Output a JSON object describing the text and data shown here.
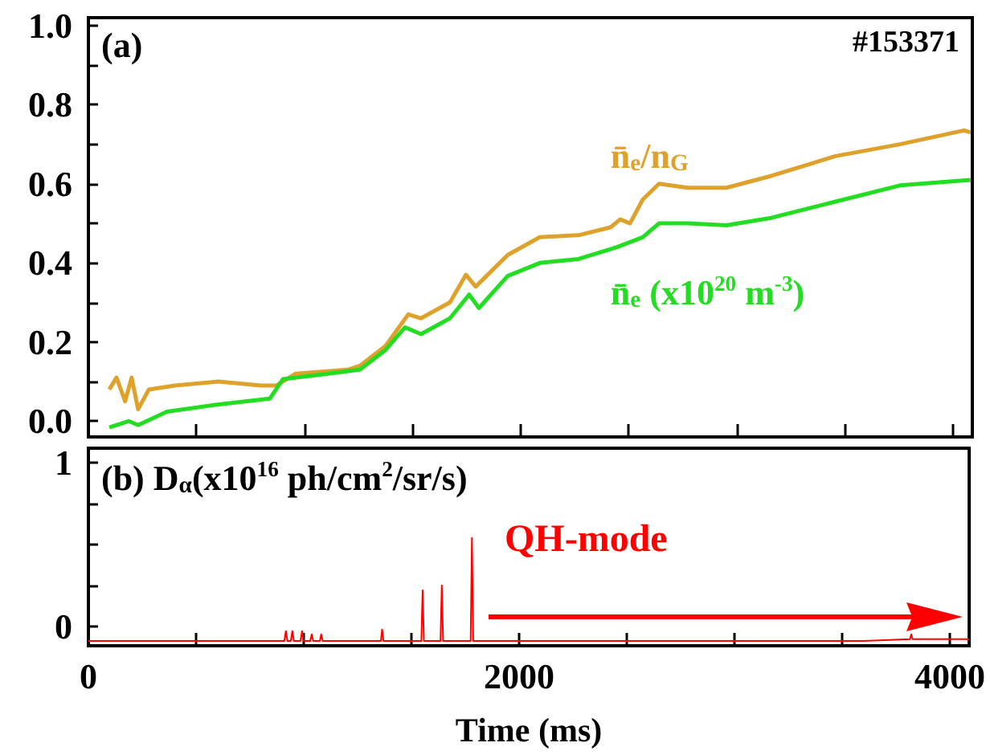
{
  "chart_data": [
    {
      "type": "line",
      "annotations": [
        "(a)",
        "#153371"
      ],
      "marker": "none",
      "grid": false,
      "legend": false,
      "tick_labels": "y",
      "xlim": [
        0,
        4090
      ],
      "ylim": [
        -0.04,
        1.02
      ],
      "xticks": [
        {
          "value": 0,
          "label": null
        },
        {
          "value": 500,
          "label": null
        },
        {
          "value": 1000,
          "label": null
        },
        {
          "value": 1500,
          "label": null
        },
        {
          "value": 2000,
          "label": null
        },
        {
          "value": 2500,
          "label": null
        },
        {
          "value": 3000,
          "label": null
        },
        {
          "value": 3500,
          "label": null
        },
        {
          "value": 4000,
          "label": null
        }
      ],
      "yticks": [
        {
          "value": 0,
          "label": "0.0"
        },
        {
          "value": 0.1,
          "label": null
        },
        {
          "value": 0.2,
          "label": "0.2"
        },
        {
          "value": 0.3,
          "label": null
        },
        {
          "value": 0.4,
          "label": "0.4"
        },
        {
          "value": 0.5,
          "label": null
        },
        {
          "value": 0.6,
          "label": "0.6"
        },
        {
          "value": 0.7,
          "label": null
        },
        {
          "value": 0.8,
          "label": "0.8"
        },
        {
          "value": 0.9,
          "label": null
        },
        {
          "value": 1.0,
          "label": "1.0"
        }
      ],
      "series": [
        {
          "name": "n̄$_{e}$/n$_{G}$",
          "color": "#dda12c",
          "x": [
            97,
            130,
            170,
            200,
            230,
            280,
            400,
            600,
            800,
            870,
            960,
            1200,
            1256,
            1375,
            1480,
            1539,
            1673,
            1747,
            1792,
            1940,
            2089,
            2268,
            2416,
            2461,
            2506,
            2565,
            2640,
            2773,
            2952,
            3160,
            3457,
            3755,
            4052,
            4082
          ],
          "values": [
            0.08,
            0.11,
            0.05,
            0.11,
            0.03,
            0.08,
            0.09,
            0.1,
            0.09,
            0.09,
            0.12,
            0.13,
            0.14,
            0.19,
            0.27,
            0.26,
            0.3,
            0.37,
            0.34,
            0.42,
            0.465,
            0.47,
            0.49,
            0.51,
            0.5,
            0.56,
            0.6,
            0.59,
            0.59,
            0.62,
            0.67,
            0.7,
            0.735,
            0.73
          ]
        },
        {
          "name": "n̄$_{e}$ (x10$^{20}$ m$^{-3}$)",
          "color": "#22dd22",
          "x": [
            97,
            186,
            230,
            364,
            573,
            840,
            900,
            1019,
            1256,
            1375,
            1465,
            1539,
            1673,
            1762,
            1807,
            1940,
            2089,
            2268,
            2446,
            2565,
            2640,
            2773,
            2952,
            3160,
            3457,
            3755,
            4082
          ],
          "values": [
            -0.016,
            0.0,
            -0.01,
            0.024,
            0.04,
            0.057,
            0.106,
            0.114,
            0.13,
            0.18,
            0.237,
            0.22,
            0.26,
            0.32,
            0.286,
            0.367,
            0.4,
            0.41,
            0.44,
            0.465,
            0.5,
            0.5,
            0.495,
            0.514,
            0.555,
            0.596,
            0.61
          ]
        }
      ]
    },
    {
      "type": "line",
      "annotations": [
        "(b) D$_{α}$(x10$^{16}$ ph/cm$^{2}$/sr/s)",
        "QH-mode"
      ],
      "marker": "none",
      "grid": false,
      "legend": false,
      "xlabel": "Time (ms)",
      "xlim": [
        0,
        4090
      ],
      "ylim": [
        -0.12,
        1.09
      ],
      "xticks": [
        {
          "value": 0,
          "label": "0"
        },
        {
          "value": 500,
          "label": null
        },
        {
          "value": 1000,
          "label": null
        },
        {
          "value": 1500,
          "label": null
        },
        {
          "value": 2000,
          "label": "2000"
        },
        {
          "value": 2500,
          "label": null
        },
        {
          "value": 3000,
          "label": null
        },
        {
          "value": 3500,
          "label": null
        },
        {
          "value": 4000,
          "label": "4000"
        }
      ],
      "yticks": [
        {
          "value": 0,
          "label": "0"
        },
        {
          "value": 0.25,
          "label": null
        },
        {
          "value": 0.5,
          "label": null
        },
        {
          "value": 0.75,
          "label": null
        },
        {
          "value": 1,
          "label": "1"
        }
      ],
      "series": [
        {
          "color": "#ff0000",
          "x": [
            0,
            910,
            917,
            924,
            940,
            947,
            954,
            985,
            992,
            999,
            1030,
            1037,
            1044,
            1075,
            1081,
            1088,
            1358,
            1364,
            1370,
            1546,
            1552,
            1558,
            1635,
            1641,
            1647,
            1775,
            1781,
            1787,
            3600,
            3815,
            3821,
            3827,
            4090
          ],
          "values": [
            -0.09,
            -0.09,
            -0.03,
            -0.09,
            -0.09,
            -0.03,
            -0.09,
            -0.09,
            -0.03,
            -0.09,
            -0.09,
            -0.05,
            -0.09,
            -0.09,
            -0.05,
            -0.09,
            -0.09,
            -0.02,
            -0.09,
            -0.09,
            0.22,
            -0.09,
            -0.09,
            0.25,
            -0.09,
            -0.09,
            0.54,
            -0.09,
            -0.09,
            -0.08,
            -0.05,
            -0.08,
            -0.08
          ]
        }
      ]
    }
  ]
}
